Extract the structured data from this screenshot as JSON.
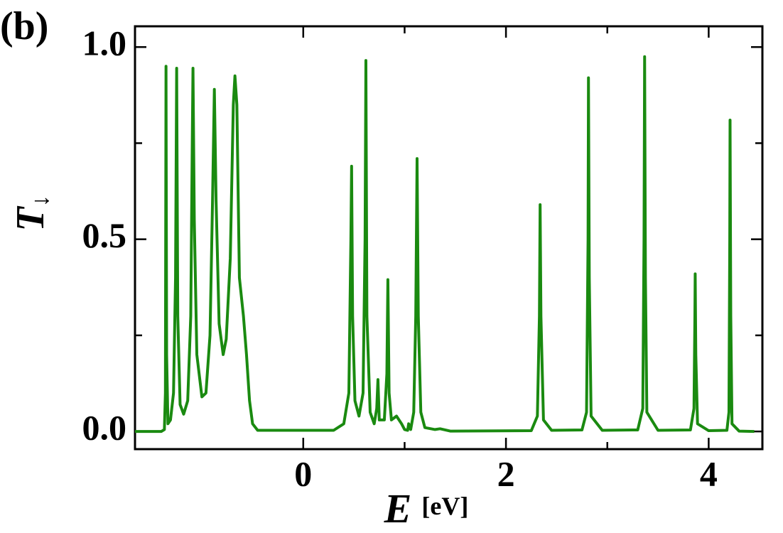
{
  "chart_data": {
    "type": "line",
    "panel_label": "(b)",
    "x_label": "E",
    "x_unit": "[eV]",
    "y_label": "T",
    "y_label_subscript": "↓",
    "xlim": [
      -1.66,
      4.53
    ],
    "ylim": [
      -0.046,
      1.054
    ],
    "xticks": [
      0,
      2,
      4
    ],
    "xminor": [
      1,
      3
    ],
    "yticks": [
      {
        "value": 0,
        "label": "0.0"
      },
      {
        "value": 0.5,
        "label": "0.5"
      },
      {
        "value": 1,
        "label": "1.0"
      }
    ],
    "yminor": [
      0.25,
      0.75
    ],
    "series": [
      {
        "color": "#1a8a10",
        "x": [
          -1.66,
          -1.4,
          -1.37,
          -1.36,
          -1.354,
          -1.348,
          -1.335,
          -1.31,
          -1.28,
          -1.26,
          -1.249,
          -1.238,
          -1.215,
          -1.18,
          -1.14,
          -1.11,
          -1.095,
          -1.088,
          -1.075,
          -1.05,
          -1.0,
          -0.96,
          -0.92,
          -0.895,
          -0.877,
          -0.86,
          -0.83,
          -0.79,
          -0.76,
          -0.72,
          -0.69,
          -0.674,
          -0.655,
          -0.63,
          -0.59,
          -0.56,
          -0.53,
          -0.5,
          -0.45,
          0.3,
          0.4,
          0.45,
          0.47,
          0.477,
          0.487,
          0.51,
          0.55,
          0.59,
          0.61,
          0.618,
          0.628,
          0.66,
          0.7,
          0.725,
          0.737,
          0.75,
          0.8,
          0.825,
          0.835,
          0.847,
          0.87,
          0.92,
          0.97,
          1.0,
          1.03,
          1.04,
          1.06,
          1.09,
          1.11,
          1.123,
          1.135,
          1.16,
          1.2,
          1.3,
          1.35,
          1.45,
          2.25,
          2.31,
          2.33,
          2.337,
          2.345,
          2.37,
          2.45,
          2.75,
          2.795,
          2.81,
          2.814,
          2.822,
          2.84,
          2.95,
          3.3,
          3.35,
          3.362,
          3.368,
          3.376,
          3.39,
          3.5,
          3.82,
          3.855,
          3.864,
          3.867,
          3.873,
          3.89,
          4.0,
          4.18,
          4.2,
          4.208,
          4.211,
          4.218,
          4.23,
          4.3,
          4.45
        ],
        "values": [
          0,
          0,
          0.005,
          0.1,
          0.95,
          0.2,
          0.02,
          0.03,
          0.1,
          0.4,
          0.945,
          0.3,
          0.07,
          0.045,
          0.08,
          0.3,
          0.75,
          0.945,
          0.55,
          0.2,
          0.09,
          0.1,
          0.25,
          0.6,
          0.89,
          0.6,
          0.28,
          0.2,
          0.24,
          0.45,
          0.85,
          0.925,
          0.85,
          0.4,
          0.3,
          0.2,
          0.08,
          0.02,
          0.003,
          0.003,
          0.02,
          0.1,
          0.5,
          0.69,
          0.3,
          0.08,
          0.04,
          0.1,
          0.5,
          0.965,
          0.3,
          0.05,
          0.02,
          0.06,
          0.135,
          0.03,
          0.03,
          0.15,
          0.395,
          0.1,
          0.03,
          0.04,
          0.02,
          0.005,
          0.003,
          0.02,
          0.005,
          0.05,
          0.3,
          0.71,
          0.3,
          0.05,
          0.01,
          0.005,
          0.007,
          0.001,
          0.002,
          0.04,
          0.3,
          0.59,
          0.3,
          0.03,
          0.003,
          0.004,
          0.05,
          0.5,
          0.92,
          0.4,
          0.04,
          0.003,
          0.004,
          0.06,
          0.5,
          0.975,
          0.4,
          0.05,
          0.003,
          0.004,
          0.06,
          0.3,
          0.41,
          0.2,
          0.02,
          0.002,
          0.003,
          0.05,
          0.5,
          0.81,
          0.3,
          0.02,
          0.001,
          0
        ]
      }
    ]
  }
}
